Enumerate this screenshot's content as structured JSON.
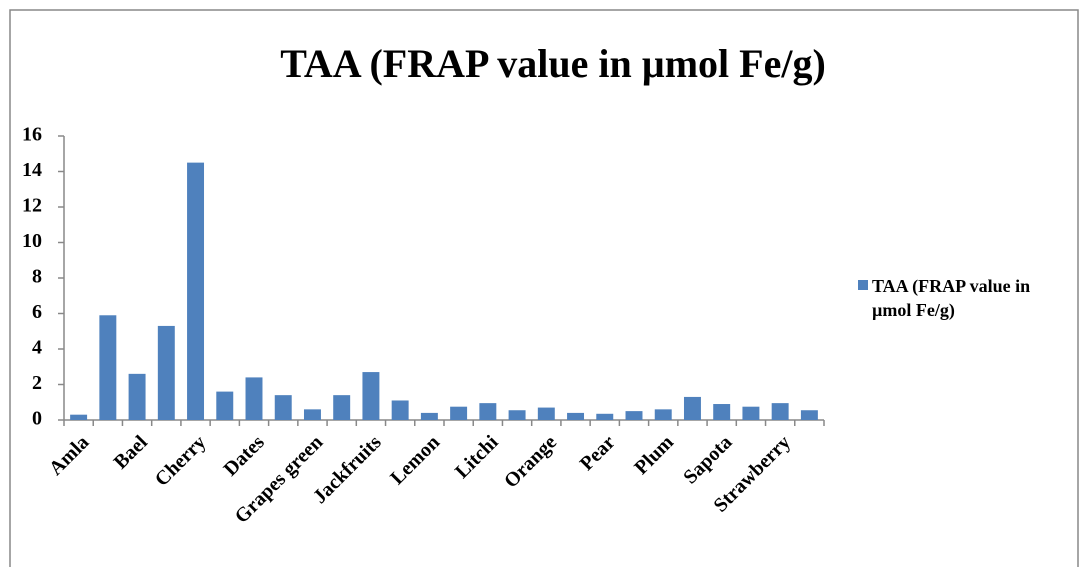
{
  "chart_data": {
    "type": "bar",
    "title": "TAA (FRAP value in µmol Fe/g)",
    "categories": [
      "Amla",
      null,
      "Bael",
      null,
      "Cherry",
      null,
      "Dates",
      null,
      "Grapes green",
      null,
      "Jackfruits",
      null,
      "Lemon",
      null,
      "Litchi",
      null,
      "Orange",
      null,
      "Pear",
      null,
      "Plum",
      null,
      "Sapota",
      null,
      "Strawberry",
      null
    ],
    "series": [
      {
        "name": "TAA (FRAP value in µmol Fe/g)",
        "color": "#4f81bd",
        "values": [
          0.3,
          5.9,
          2.6,
          5.3,
          14.5,
          1.6,
          2.4,
          1.4,
          0.6,
          1.4,
          2.7,
          1.1,
          0.4,
          0.75,
          0.95,
          0.55,
          0.7,
          0.4,
          0.35,
          0.5,
          0.6,
          1.3,
          0.9,
          0.75,
          0.95,
          0.55
        ]
      }
    ],
    "ylim": [
      0,
      16
    ],
    "yticks": [
      0,
      2,
      4,
      6,
      8,
      10,
      12,
      14,
      16
    ],
    "grid": false,
    "legend": "right"
  }
}
